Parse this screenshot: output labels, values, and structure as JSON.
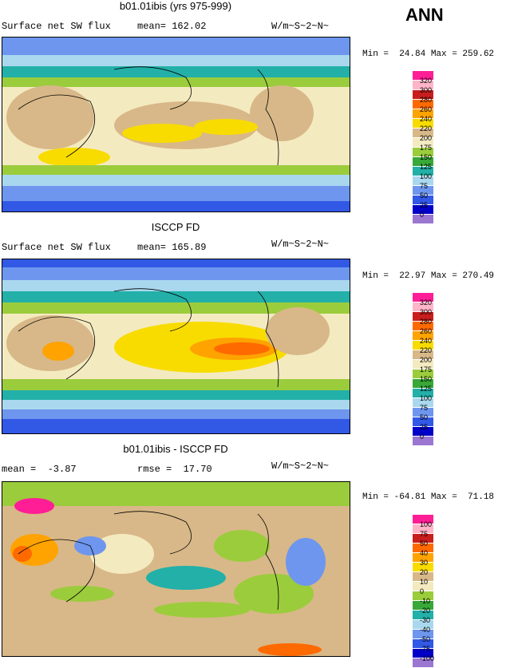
{
  "header": {
    "annotation": "ANN"
  },
  "palette": {
    "abs": [
      "#9b77d1",
      "#0000c8",
      "#3258e6",
      "#6e96ee",
      "#a9d8ee",
      "#22b0a8",
      "#38a838",
      "#9bcc3c",
      "#f4eac0",
      "#d8b888",
      "#f8dc00",
      "#ffa300",
      "#ff6a00",
      "#c81e1e",
      "#ffb4c8",
      "#ff1e96"
    ],
    "diff": [
      "#9b77d1",
      "#0000c8",
      "#3258e6",
      "#6e96ee",
      "#a9d8ee",
      "#22b0a8",
      "#38a838",
      "#9bcc3c",
      "#f4eac0",
      "#d8b888",
      "#f8dc00",
      "#ffa300",
      "#ff6a00",
      "#c81e1e",
      "#ffb4c8",
      "#ff1e96"
    ]
  },
  "panels": [
    {
      "title": "b01.01ibis (yrs 975-999)",
      "subtitle_left": "Surface net SW flux",
      "mean_text": "mean= 162.02",
      "units": "W/m~S~2~N~",
      "minmax": "Min =  24.84 Max = 259.62",
      "legend": [
        "320",
        "300",
        "280",
        "260",
        "240",
        "220",
        "200",
        "175",
        "150",
        "125",
        "100",
        "75",
        "50",
        "25",
        "0"
      ]
    },
    {
      "title": "ISCCP FD",
      "subtitle_left": "Surface net SW flux",
      "mean_text": "mean= 165.89",
      "units": "W/m~S~2~N~",
      "minmax": "Min =  22.97 Max = 270.49",
      "legend": [
        "320",
        "300",
        "280",
        "260",
        "240",
        "220",
        "200",
        "175",
        "150",
        "125",
        "100",
        "75",
        "50",
        "25",
        "0"
      ]
    },
    {
      "title": "b01.01ibis - ISCCP FD",
      "subtitle_left": "mean =  -3.87",
      "mean_text": "rmse =  17.70",
      "units": "W/m~S~2~N~",
      "minmax": "Min = -64.81 Max =  71.18",
      "legend": [
        "100",
        "75",
        "50",
        "40",
        "30",
        "20",
        "10",
        "0",
        "-10",
        "-20",
        "-30",
        "-40",
        "-50",
        "-75",
        "-100"
      ]
    }
  ],
  "chart_data": [
    {
      "type": "heatmap",
      "title": "b01.01ibis (yrs 975-999)",
      "variable": "Surface net SW flux",
      "mean": 162.02,
      "units": "W/m~S~2~N~",
      "min": 24.84,
      "max": 259.62,
      "levels": [
        0,
        25,
        50,
        75,
        100,
        125,
        150,
        175,
        200,
        220,
        240,
        260,
        280,
        300,
        320
      ],
      "projection": "global cylindrical map with coastlines"
    },
    {
      "type": "heatmap",
      "title": "ISCCP FD",
      "variable": "Surface net SW flux",
      "mean": 165.89,
      "units": "W/m~S~2~N~",
      "min": 22.97,
      "max": 270.49,
      "levels": [
        0,
        25,
        50,
        75,
        100,
        125,
        150,
        175,
        200,
        220,
        240,
        260,
        280,
        300,
        320
      ],
      "projection": "global cylindrical map with coastlines"
    },
    {
      "type": "heatmap",
      "title": "b01.01ibis - ISCCP FD",
      "mean": -3.87,
      "rmse": 17.7,
      "units": "W/m~S~2~N~",
      "min": -64.81,
      "max": 71.18,
      "levels": [
        -100,
        -75,
        -50,
        -40,
        -30,
        -20,
        -10,
        0,
        10,
        20,
        30,
        40,
        50,
        75,
        100
      ],
      "projection": "global cylindrical map with coastlines"
    }
  ]
}
